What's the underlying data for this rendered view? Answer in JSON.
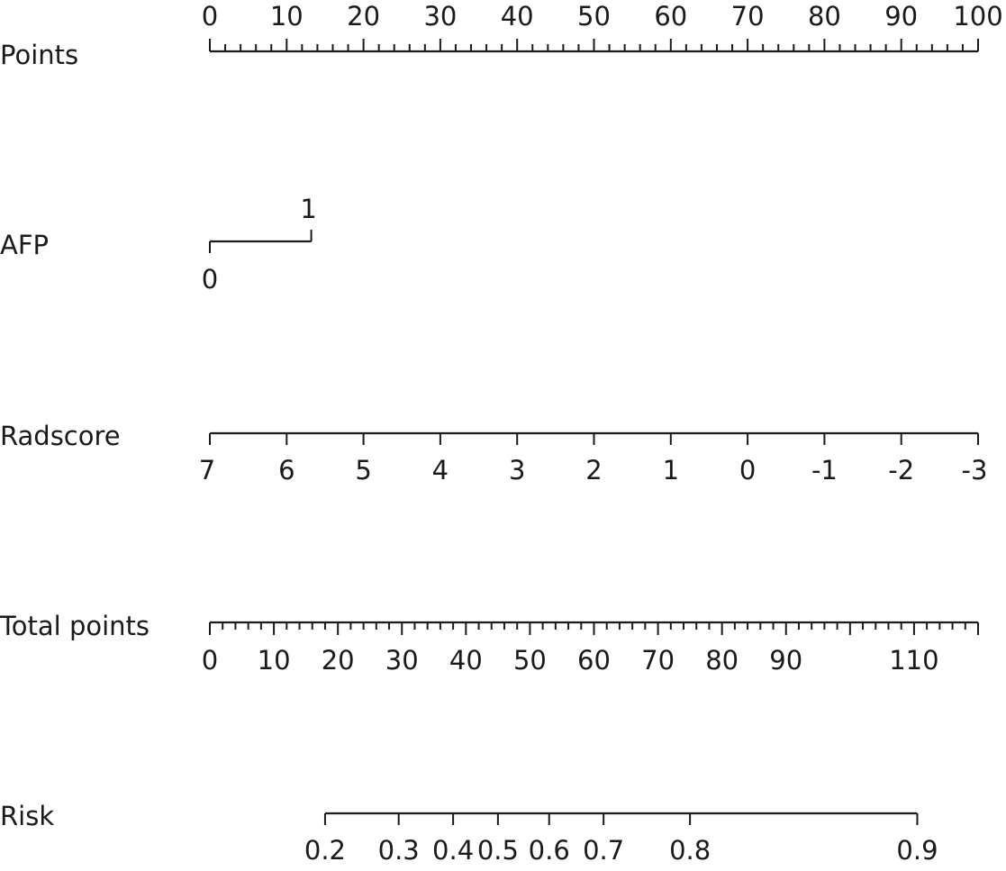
{
  "chart_data": {
    "type": "nomogram",
    "rows": [
      {
        "key": "points",
        "label": "Points",
        "tick_side": "above",
        "ticks": [
          {
            "value": 0,
            "label": "0"
          },
          {
            "value": 10,
            "label": "10"
          },
          {
            "value": 20,
            "label": "20"
          },
          {
            "value": 30,
            "label": "30"
          },
          {
            "value": 40,
            "label": "40"
          },
          {
            "value": 50,
            "label": "50"
          },
          {
            "value": 60,
            "label": "60"
          },
          {
            "value": 70,
            "label": "70"
          },
          {
            "value": 80,
            "label": "80"
          },
          {
            "value": 90,
            "label": "90"
          },
          {
            "value": 100,
            "label": "100"
          }
        ],
        "minor_step": 2,
        "range": [
          0,
          100
        ]
      },
      {
        "key": "afp",
        "label": "AFP",
        "type": "categorical",
        "levels": [
          {
            "label": "0",
            "points": 0
          },
          {
            "label": "1",
            "points": 13.2
          }
        ]
      },
      {
        "key": "radscore",
        "label": "Radscore",
        "tick_side": "below",
        "ticks": [
          {
            "label": "7",
            "points": 0
          },
          {
            "label": "6",
            "points": 10
          },
          {
            "label": "5",
            "points": 20
          },
          {
            "label": "4",
            "points": 30
          },
          {
            "label": "3",
            "points": 40
          },
          {
            "label": "2",
            "points": 50
          },
          {
            "label": "1",
            "points": 60
          },
          {
            "label": "0",
            "points": 70
          },
          {
            "label": "-1",
            "points": 80
          },
          {
            "label": "-2",
            "points": 90
          },
          {
            "label": "-3",
            "points": 100
          }
        ]
      },
      {
        "key": "total_points",
        "label": "Total points",
        "tick_side": "below",
        "range": [
          0,
          120
        ],
        "minor_step": 2,
        "ticks": [
          {
            "value": 0,
            "label": "0"
          },
          {
            "value": 10,
            "label": "10"
          },
          {
            "value": 20,
            "label": "20"
          },
          {
            "value": 30,
            "label": "30"
          },
          {
            "value": 40,
            "label": "40"
          },
          {
            "value": 50,
            "label": "50"
          },
          {
            "value": 60,
            "label": "60"
          },
          {
            "value": 70,
            "label": "70"
          },
          {
            "value": 80,
            "label": "80"
          },
          {
            "value": 90,
            "label": "90"
          },
          {
            "value": 110,
            "label": "110"
          }
        ]
      },
      {
        "key": "risk",
        "label": "Risk",
        "tick_side": "below",
        "ticks": [
          {
            "label": "0.2",
            "total_points": 18.0
          },
          {
            "label": "0.3",
            "total_points": 29.5
          },
          {
            "label": "0.4",
            "total_points": 38.0
          },
          {
            "label": "0.5",
            "total_points": 45.0
          },
          {
            "label": "0.6",
            "total_points": 53.0
          },
          {
            "label": "0.7",
            "total_points": 61.5
          },
          {
            "label": "0.8",
            "total_points": 75.0
          },
          {
            "label": "0.9",
            "total_points": 110.5
          }
        ]
      }
    ]
  }
}
